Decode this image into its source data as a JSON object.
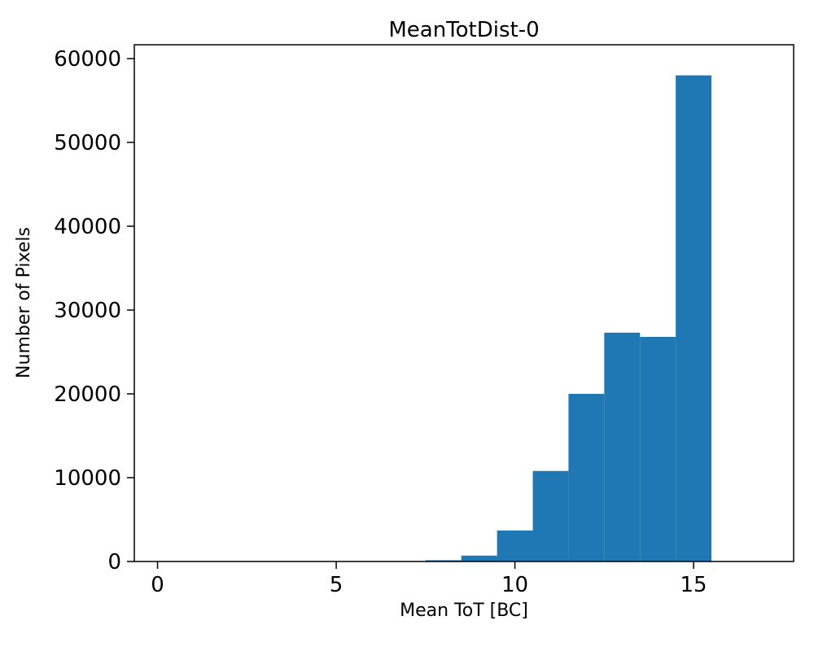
{
  "chart": {
    "title": "MeanTotDist-0",
    "xlabel": "Mean ToT [BC]",
    "ylabel": "Number of Pixels"
  },
  "chart_data": {
    "type": "bar",
    "subtype": "histogram",
    "title": "MeanTotDist-0",
    "xlabel": "Mean ToT [BC]",
    "ylabel": "Number of Pixels",
    "bar_color": "#1f77b4",
    "axis_color": "#000000",
    "background_color": "#ffffff",
    "bin_edges": [
      7.5,
      8.5,
      9.5,
      10.5,
      11.5,
      12.5,
      13.5,
      14.5,
      15.5
    ],
    "values": [
      150,
      700,
      3700,
      10800,
      20000,
      27300,
      26800,
      58000
    ],
    "xlim": [
      -0.65,
      17.8
    ],
    "ylim": [
      0,
      61650
    ],
    "xticks": [
      0,
      5,
      10,
      15
    ],
    "yticks": [
      0,
      10000,
      20000,
      30000,
      40000,
      50000,
      60000
    ],
    "grid": false,
    "legend": null
  }
}
